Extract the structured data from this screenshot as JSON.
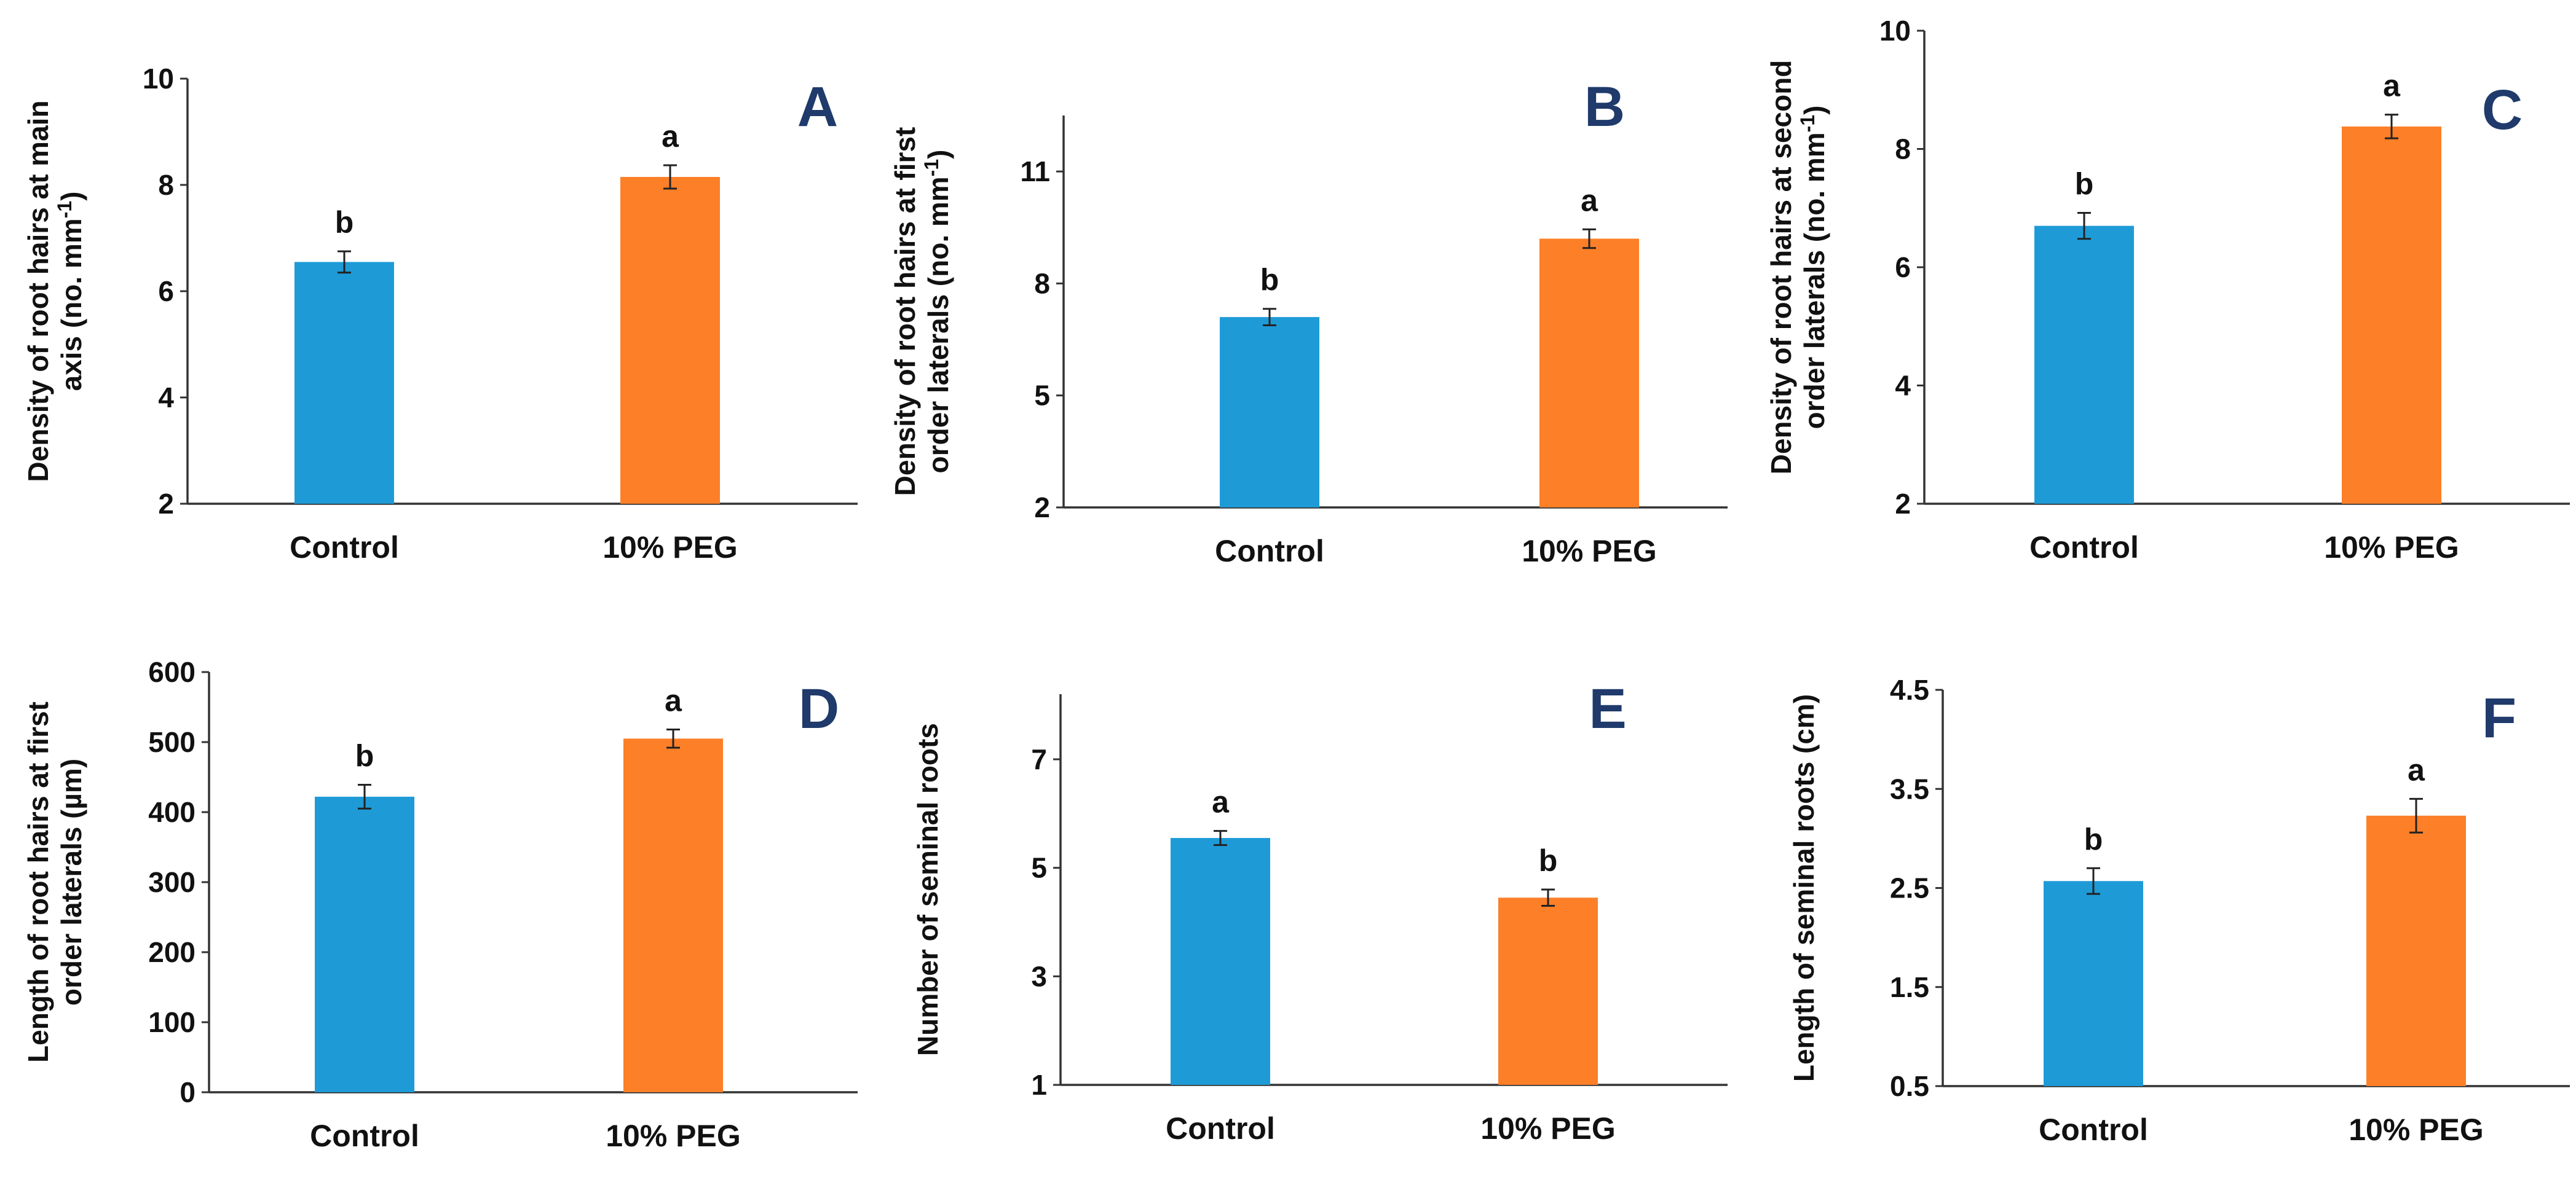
{
  "colors": {
    "control": "#1e9bd7",
    "peg": "#fd7f28",
    "axis": "#333333",
    "letter": "#1f3a6b"
  },
  "chart_data": [
    {
      "type": "bar",
      "panel": "A",
      "ylabel_lines": [
        "Density of root hairs at main",
        "axis  (no. mm-1)"
      ],
      "categories": [
        "Control",
        "10% PEG"
      ],
      "values": [
        6.55,
        8.15
      ],
      "errors": [
        0.2,
        0.22
      ],
      "significance": [
        "b",
        "a"
      ],
      "ylim": [
        2,
        10
      ],
      "yticks": [
        2,
        4,
        6,
        8,
        10
      ],
      "ytick_labels": [
        "2",
        "4",
        "6",
        "8",
        "10"
      ],
      "axis_top_label": true
    },
    {
      "type": "bar",
      "panel": "B",
      "ylabel_lines": [
        "Density of root hairs at first",
        "order laterals (no. mm-1)"
      ],
      "categories": [
        "Control",
        "10% PEG"
      ],
      "values": [
        7.1,
        9.2
      ],
      "errors": [
        0.22,
        0.25
      ],
      "significance": [
        "b",
        "a"
      ],
      "ylim": [
        2,
        12.5
      ],
      "yticks": [
        2,
        5,
        8,
        11
      ],
      "ytick_labels": [
        "2",
        "5",
        "8",
        "11"
      ],
      "axis_top_label": false
    },
    {
      "type": "bar",
      "panel": "C",
      "ylabel_lines": [
        "Density of  root hairs at second",
        "order laterals (no. mm-1)"
      ],
      "categories": [
        "Control",
        "10% PEG"
      ],
      "values": [
        6.7,
        8.38
      ],
      "errors": [
        0.22,
        0.2
      ],
      "significance": [
        "b",
        "a"
      ],
      "ylim": [
        2,
        10
      ],
      "yticks": [
        2,
        4,
        6,
        8,
        10
      ],
      "ytick_labels": [
        "2",
        "4",
        "6",
        "8",
        "10"
      ],
      "axis_top_label": true
    },
    {
      "type": "bar",
      "panel": "D",
      "ylabel_lines": [
        "Length of root hairs at first",
        "order laterals (µm)"
      ],
      "categories": [
        "Control",
        "10% PEG"
      ],
      "values": [
        422,
        505
      ],
      "errors": [
        17,
        13
      ],
      "significance": [
        "b",
        "a"
      ],
      "ylim": [
        0,
        600
      ],
      "yticks": [
        0,
        100,
        200,
        300,
        400,
        500,
        600
      ],
      "ytick_labels": [
        "0",
        "100",
        "200",
        "300",
        "400",
        "500",
        "600"
      ],
      "axis_top_label": true
    },
    {
      "type": "bar",
      "panel": "E",
      "ylabel_lines": [
        "Number of seminal roots"
      ],
      "categories": [
        "Control",
        "10% PEG"
      ],
      "values": [
        5.55,
        4.45
      ],
      "errors": [
        0.13,
        0.15
      ],
      "significance": [
        "a",
        "b"
      ],
      "ylim": [
        1,
        8.2
      ],
      "yticks": [
        1,
        3,
        5,
        7
      ],
      "ytick_labels": [
        "1",
        "3",
        "5",
        "7"
      ],
      "axis_top_label": false
    },
    {
      "type": "bar",
      "panel": "F",
      "ylabel_lines": [
        "Length of seminal roots (cm)"
      ],
      "categories": [
        "Control",
        "10% PEG"
      ],
      "values": [
        2.57,
        3.23
      ],
      "errors": [
        0.13,
        0.17
      ],
      "significance": [
        "b",
        "a"
      ],
      "ylim": [
        0.5,
        4.5
      ],
      "yticks": [
        0.5,
        1.5,
        2.5,
        3.5,
        4.5
      ],
      "ytick_labels": [
        "0.5",
        "1.5",
        "2.5",
        "3.5",
        "4.5"
      ],
      "axis_top_label": true
    }
  ]
}
